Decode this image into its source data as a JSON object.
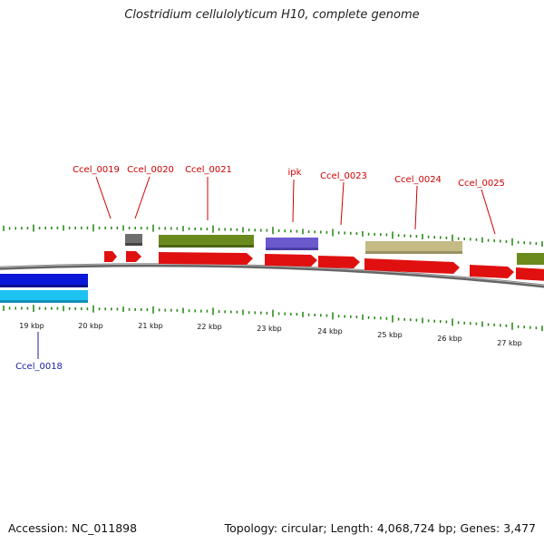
{
  "title": "Clostridium cellulolyticum H10, complete genome",
  "footer": {
    "accession": "Accession: NC_011898",
    "summary": "Topology: circular; Length: 4,068,724 bp; Genes: 3,477"
  },
  "colors": {
    "cds_red": "#e01010",
    "green_band": "#6b8a1e",
    "purple_band": "#6a5acd",
    "khaki_band": "#c4bb85",
    "grey_band": "#6e6e6e",
    "blue_band": "#0a16d8",
    "cyan_band": "#1cc3f0",
    "tick_green": "#2e8b1e",
    "forward_label": "#cc0000",
    "reverse_label": "#1a1aa6"
  },
  "scale_labels": [
    "19 kbp",
    "20 kbp",
    "21 kbp",
    "22 kbp",
    "23 kbp",
    "24 kbp",
    "25 kbp",
    "26 kbp",
    "27 kbp"
  ],
  "gene_labels_forward": [
    "Ccel_0019",
    "Ccel_0020",
    "Ccel_0021",
    "ipk",
    "Ccel_0023",
    "Ccel_0024",
    "Ccel_0025"
  ],
  "gene_labels_reverse": [
    "Ccel_0018"
  ]
}
